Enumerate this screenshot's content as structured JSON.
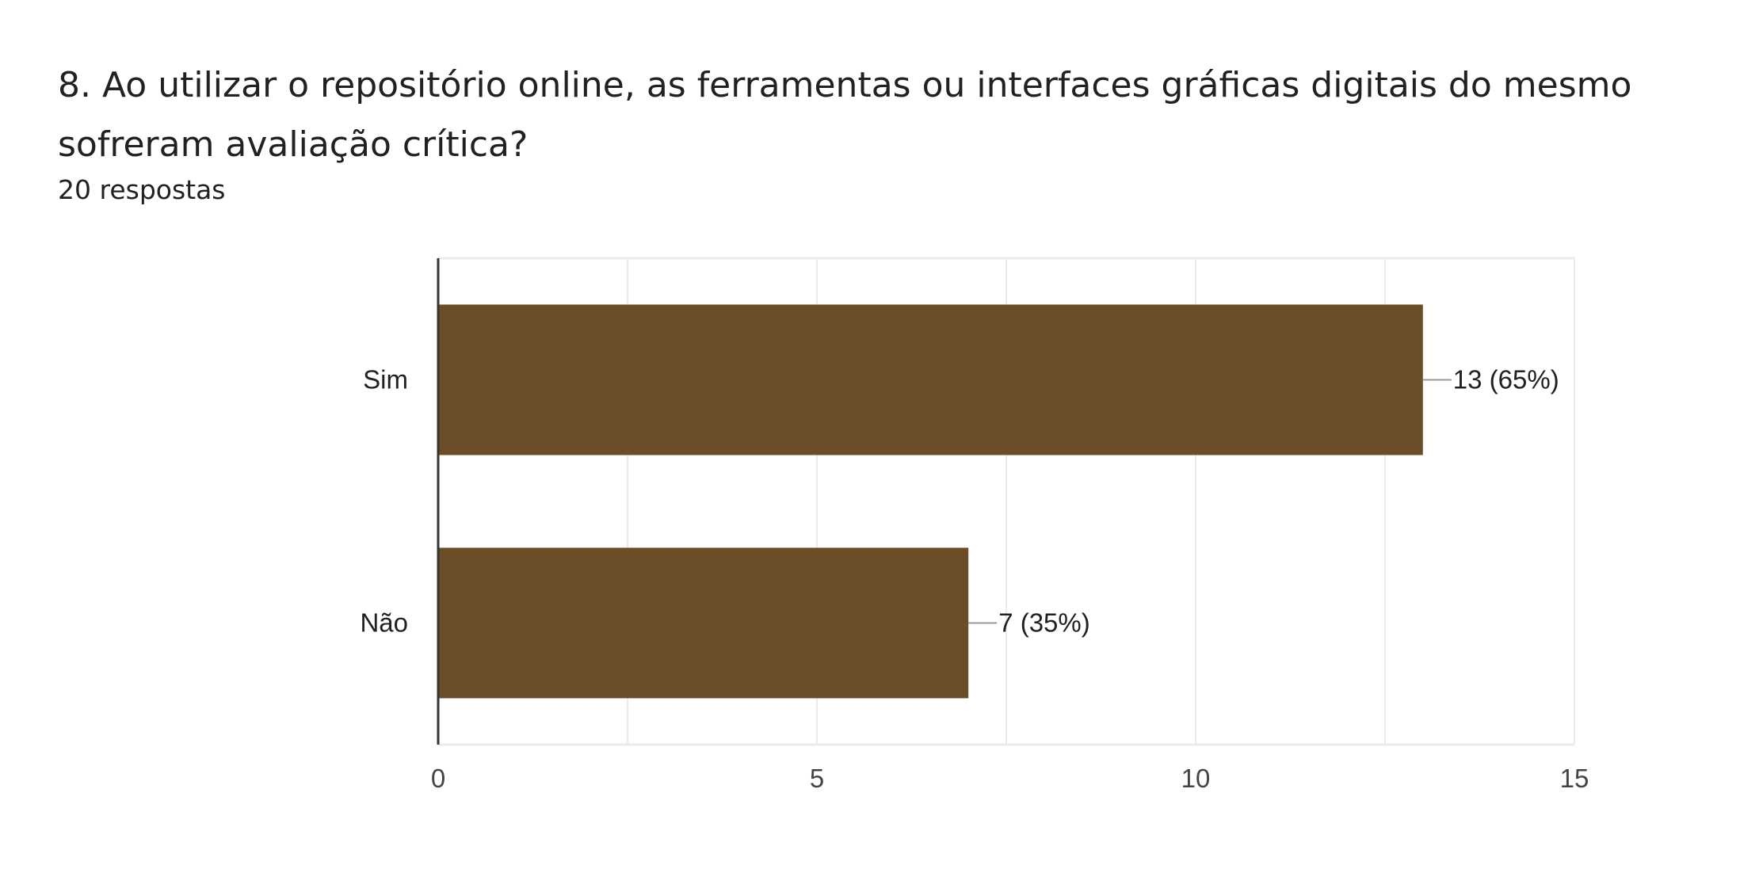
{
  "question": {
    "title": "8.  Ao utilizar o repositório online, as ferramentas ou interfaces gráficas digitais do mesmo sofreram avaliação crítica?",
    "responses": "20 respostas"
  },
  "colors": {
    "bar": "#6b4e28",
    "grid": "#ebebeb",
    "axis": "#333333",
    "text": "#202124",
    "leader": "#999999"
  },
  "chart_data": {
    "type": "bar",
    "orientation": "horizontal",
    "categories": [
      "Sim",
      "Não"
    ],
    "values": [
      13,
      7
    ],
    "data_labels": [
      "13 (65%)",
      "7 (35%)"
    ],
    "xlim": [
      0,
      15
    ],
    "xticks": [
      0,
      5,
      10,
      15
    ],
    "xtick_labels": [
      "0",
      "5",
      "10",
      "15"
    ],
    "grid": true,
    "legend": "none"
  }
}
